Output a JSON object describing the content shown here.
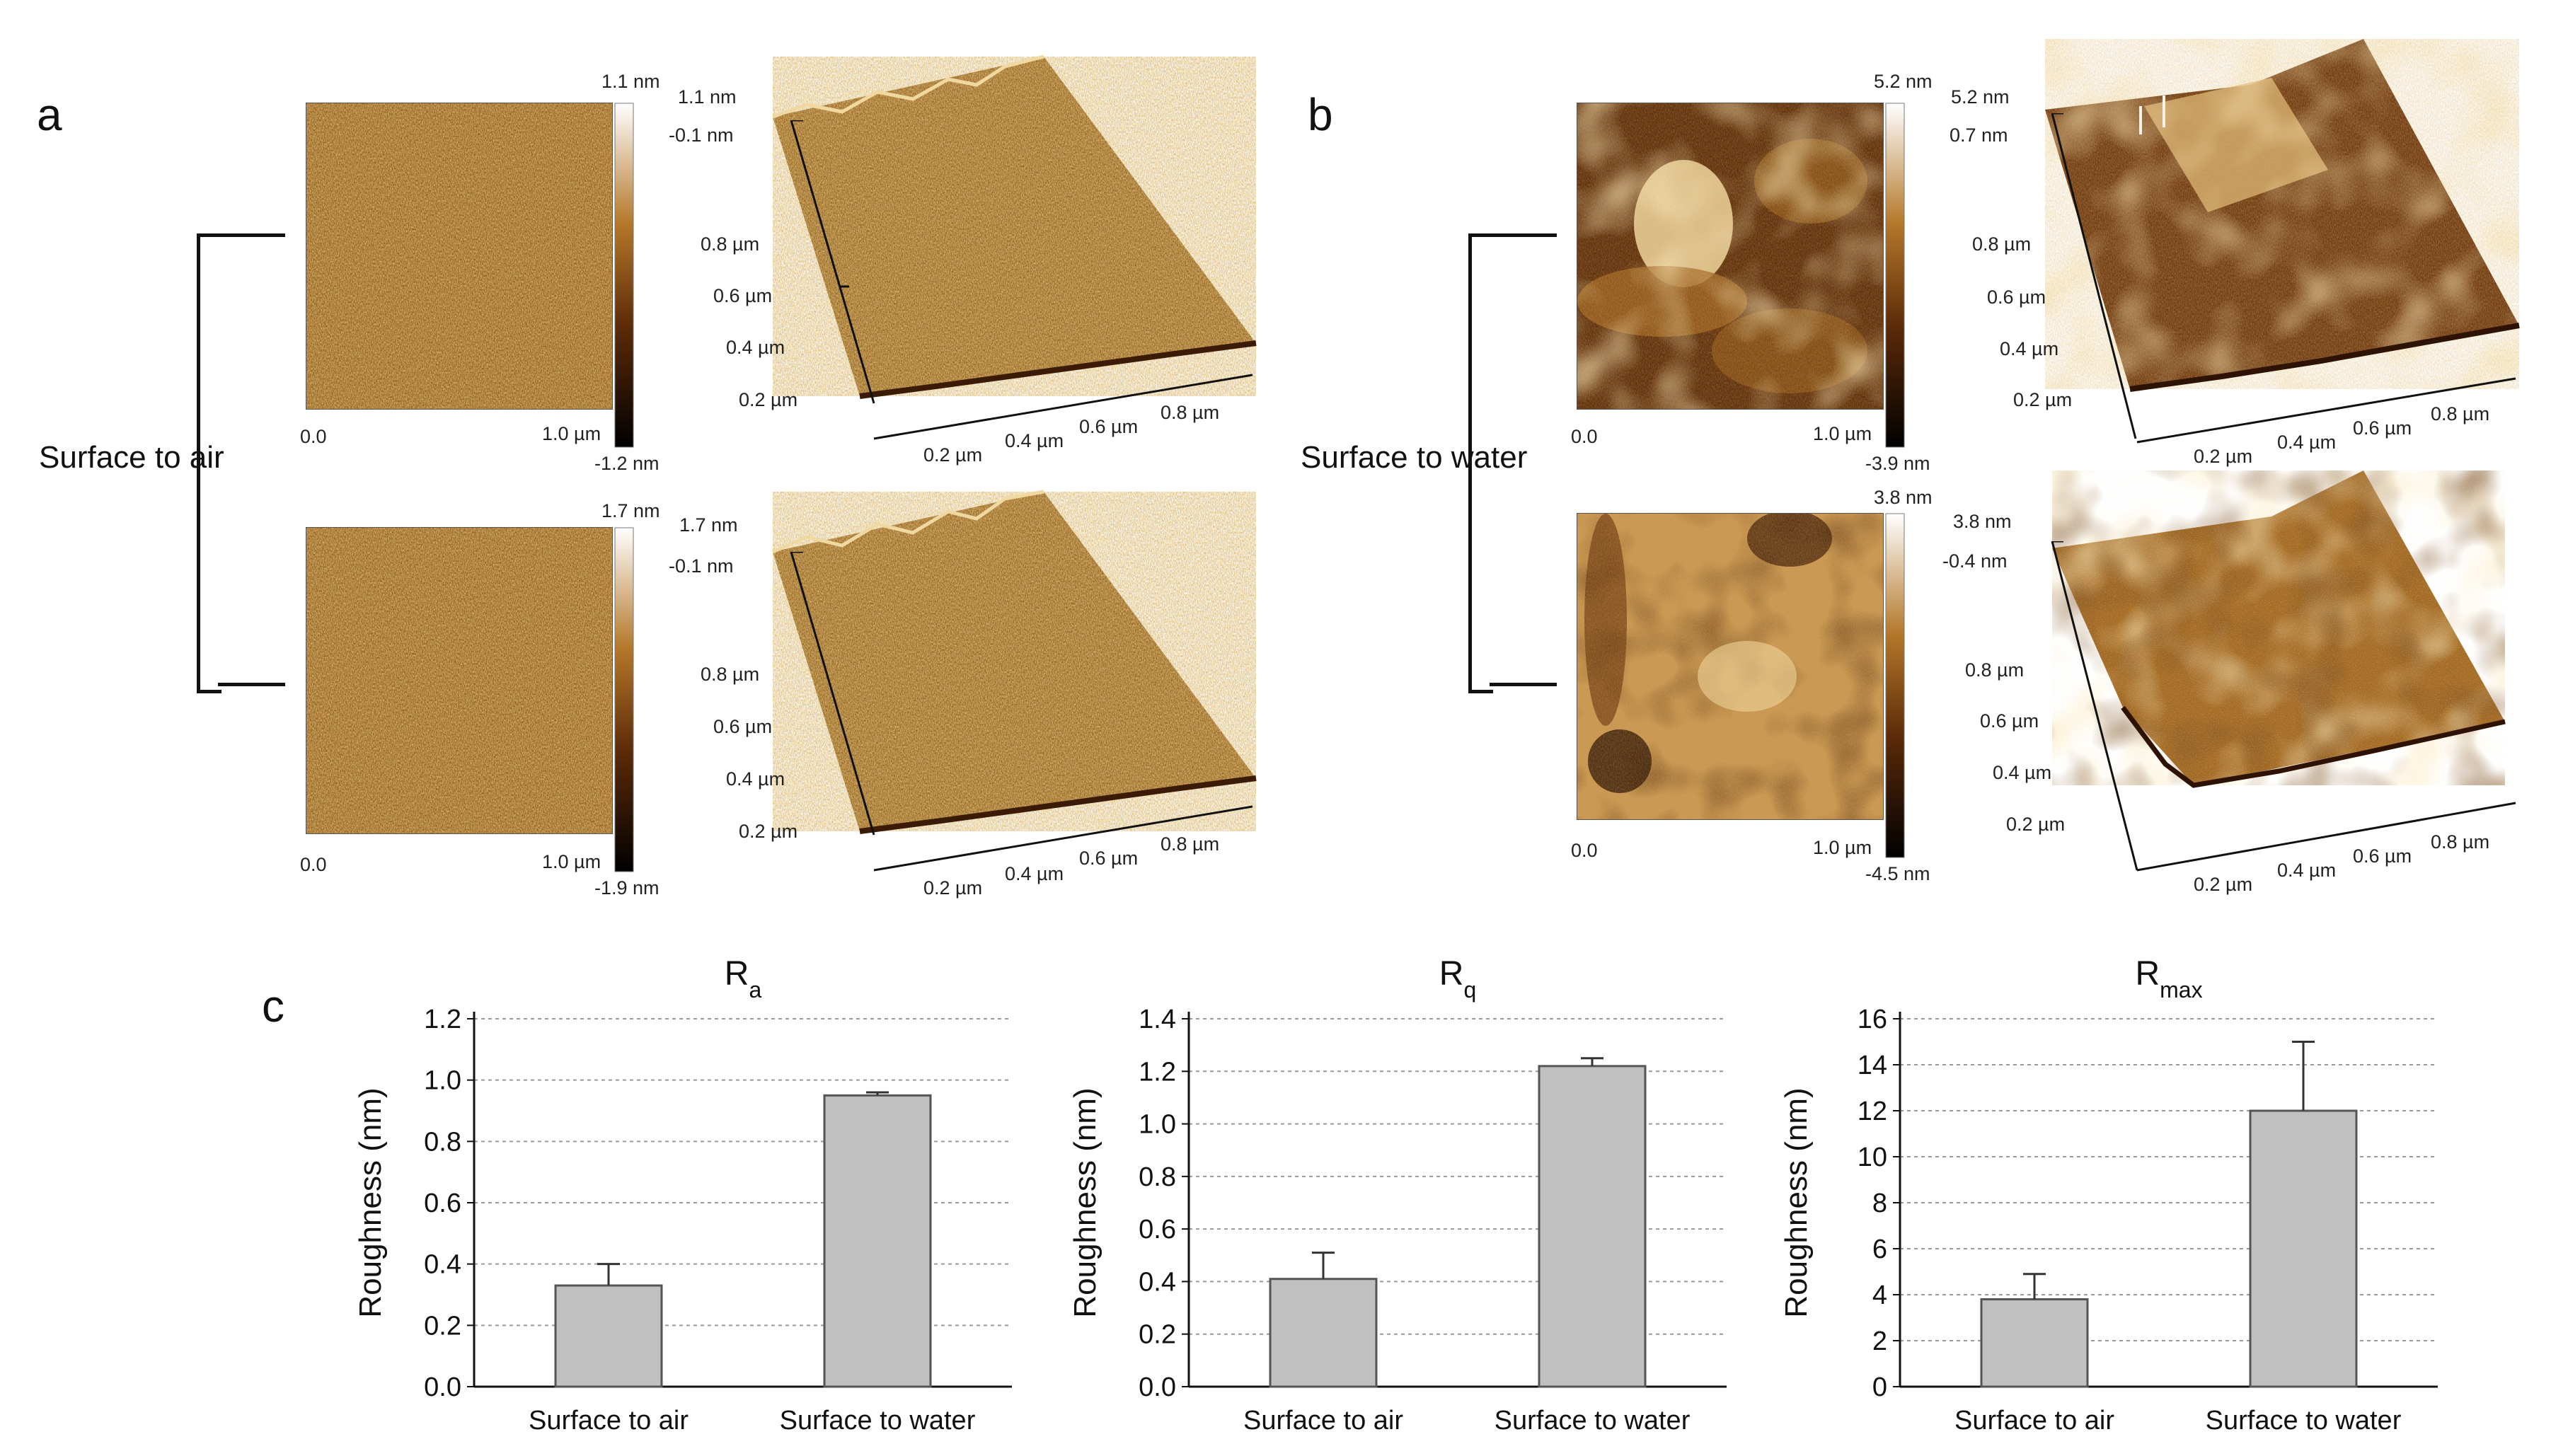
{
  "panels": {
    "a": {
      "letter": "a",
      "side_label": "Surface to air",
      "top": {
        "scale_max": "1.1 nm",
        "scale_min": "-1.2 nm",
        "x_start": "0.0",
        "x_end": "1.0 µm",
        "z_top": "1.1 nm",
        "z_mid": "-0.1 nm",
        "y_ticks": [
          "0.8 µm",
          "0.6 µm",
          "0.4 µm",
          "0.2 µm"
        ],
        "x_ticks": [
          "0.2 µm",
          "0.4 µm",
          "0.6 µm",
          "0.8 µm"
        ]
      },
      "bottom": {
        "scale_max": "1.7 nm",
        "scale_min": "-1.9 nm",
        "x_start": "0.0",
        "x_end": "1.0 µm",
        "z_top": "1.7 nm",
        "z_mid": "-0.1 nm",
        "y_ticks": [
          "0.8 µm",
          "0.6 µm",
          "0.4 µm",
          "0.2 µm"
        ],
        "x_ticks": [
          "0.2 µm",
          "0.4 µm",
          "0.6 µm",
          "0.8 µm"
        ]
      }
    },
    "b": {
      "letter": "b",
      "side_label": "Surface to water",
      "top": {
        "scale_max": "5.2 nm",
        "scale_min": "-3.9 nm",
        "x_start": "0.0",
        "x_end": "1.0 µm",
        "z_top": "5.2 nm",
        "z_mid": "0.7 nm",
        "y_ticks": [
          "0.8 µm",
          "0.6 µm",
          "0.4 µm",
          "0.2 µm"
        ],
        "x_ticks": [
          "0.2 µm",
          "0.4 µm",
          "0.6 µm",
          "0.8 µm"
        ]
      },
      "bottom": {
        "scale_max": "3.8 nm",
        "scale_min": "-4.5 nm",
        "x_start": "0.0",
        "x_end": "1.0 µm",
        "z_top": "3.8 nm",
        "z_mid": "-0.4 nm",
        "y_ticks": [
          "0.8 µm",
          "0.6 µm",
          "0.4 µm",
          "0.2 µm"
        ],
        "x_ticks": [
          "0.2 µm",
          "0.4 µm",
          "0.6 µm",
          "0.8 µm"
        ]
      }
    },
    "c": {
      "letter": "c"
    }
  },
  "colors": {
    "bar_fill": "#c0c0c0",
    "bar_stroke": "#555555",
    "afm_dark": "#3a1a06",
    "afm_mid": "#a2691f",
    "afm_light": "#f3ddb0"
  },
  "chart_data": [
    {
      "type": "bar",
      "title": "R",
      "title_sub": "a",
      "ylabel": "Roughness (nm)",
      "categories": [
        "Surface to air",
        "Surface to water"
      ],
      "values": [
        0.33,
        0.95
      ],
      "errors": [
        0.07,
        0.01
      ],
      "ylim": [
        0,
        1.2
      ],
      "yticks": [
        "0.0",
        "0.2",
        "0.4",
        "0.6",
        "0.8",
        "1.0",
        "1.2"
      ],
      "grid": true
    },
    {
      "type": "bar",
      "title": "R",
      "title_sub": "q",
      "ylabel": "Roughness (nm)",
      "categories": [
        "Surface to air",
        "Surface to water"
      ],
      "values": [
        0.41,
        1.22
      ],
      "errors": [
        0.1,
        0.03
      ],
      "ylim": [
        0,
        1.4
      ],
      "yticks": [
        "0.0",
        "0.2",
        "0.4",
        "0.6",
        "0.8",
        "1.0",
        "1.2",
        "1.4"
      ],
      "grid": true
    },
    {
      "type": "bar",
      "title": "R",
      "title_sub": "max",
      "ylabel": "Roughness (nm)",
      "categories": [
        "Surface to air",
        "Surface to water"
      ],
      "values": [
        3.8,
        12.0
      ],
      "errors": [
        1.1,
        3.0
      ],
      "ylim": [
        0,
        16
      ],
      "yticks": [
        "0",
        "2",
        "4",
        "6",
        "8",
        "10",
        "12",
        "14",
        "16"
      ],
      "grid": true
    }
  ]
}
